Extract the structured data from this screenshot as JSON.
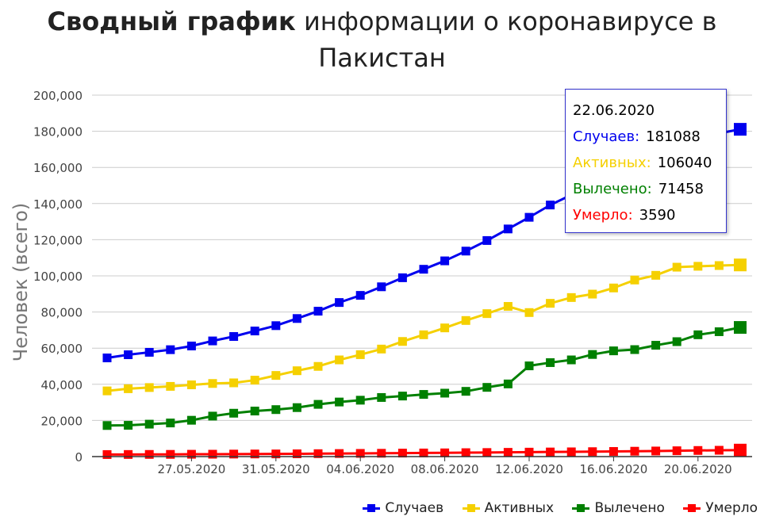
{
  "title": {
    "bold": "Сводный график",
    "rest_line1": " информации о коронавирусе в",
    "line2": "Пакистан"
  },
  "chart_data": {
    "type": "line",
    "title": "Сводный график информации о коронавирусе в Пакистан",
    "xlabel": "",
    "ylabel": "Человек (всего)",
    "ylim": [
      0,
      200000
    ],
    "yticks": [
      0,
      20000,
      40000,
      60000,
      80000,
      100000,
      120000,
      140000,
      160000,
      180000,
      200000
    ],
    "ytick_labels": [
      "0",
      "20,000",
      "40,000",
      "60,000",
      "80,000",
      "100,000",
      "120,000",
      "140,000",
      "160,000",
      "180,000",
      "200,000"
    ],
    "x": [
      "23.05.2020",
      "24.05.2020",
      "25.05.2020",
      "26.05.2020",
      "27.05.2020",
      "28.05.2020",
      "29.05.2020",
      "30.05.2020",
      "31.05.2020",
      "01.06.2020",
      "02.06.2020",
      "03.06.2020",
      "04.06.2020",
      "05.06.2020",
      "06.06.2020",
      "07.06.2020",
      "08.06.2020",
      "09.06.2020",
      "10.06.2020",
      "11.06.2020",
      "12.06.2020",
      "13.06.2020",
      "14.06.2020",
      "15.06.2020",
      "16.06.2020",
      "17.06.2020",
      "18.06.2020",
      "19.06.2020",
      "20.06.2020",
      "21.06.2020",
      "22.06.2020"
    ],
    "xtick_labels": [
      "27.05.2020",
      "31.05.2020",
      "04.06.2020",
      "08.06.2020",
      "12.06.2020",
      "16.06.2020",
      "20.06.2020"
    ],
    "grid": true,
    "legend_position": "bottom-right",
    "series": [
      {
        "name": "Случаев",
        "color": "#0000ee",
        "values": [
          54600,
          56350,
          57700,
          59150,
          61200,
          64000,
          66450,
          69500,
          72450,
          76400,
          80450,
          85250,
          89200,
          93950,
          98950,
          103650,
          108300,
          113700,
          119550,
          125950,
          132400,
          139200,
          144800,
          150000,
          154750,
          160100,
          165050,
          171650,
          176600,
          178900,
          181088
        ]
      },
      {
        "name": "Активных",
        "color": "#f5d000",
        "values": [
          36350,
          37550,
          38200,
          38850,
          39700,
          40450,
          40800,
          42300,
          44900,
          47500,
          49900,
          53500,
          56400,
          59500,
          63700,
          67400,
          71200,
          75300,
          79100,
          83100,
          79700,
          84800,
          88000,
          89900,
          93300,
          97700,
          100300,
          104800,
          105300,
          105700,
          106040
        ]
      },
      {
        "name": "Вылечено",
        "color": "#008000",
        "values": [
          17200,
          17300,
          17950,
          18600,
          20100,
          22400,
          24000,
          25200,
          26000,
          27100,
          28900,
          30200,
          31200,
          32700,
          33500,
          34400,
          35100,
          36100,
          38300,
          40200,
          50200,
          52000,
          53500,
          56500,
          58500,
          59200,
          61600,
          63600,
          67400,
          69100,
          71458
        ]
      },
      {
        "name": "Умерло",
        "color": "#ff0000",
        "values": [
          1130,
          1165,
          1200,
          1225,
          1290,
          1320,
          1395,
          1450,
          1480,
          1540,
          1621,
          1702,
          1770,
          1838,
          1935,
          2002,
          2067,
          2172,
          2255,
          2356,
          2463,
          2551,
          2632,
          2729,
          2839,
          2975,
          3093,
          3229,
          3382,
          3501,
          3590
        ]
      }
    ]
  },
  "tooltip": {
    "date": "22.06.2020",
    "rows": [
      {
        "label": "Случаев:",
        "value": "181088",
        "color": "#0000ee"
      },
      {
        "label": "Активных:",
        "value": "106040",
        "color": "#f5d000"
      },
      {
        "label": "Вылечено:",
        "value": "71458",
        "color": "#008000"
      },
      {
        "label": "Умерло:",
        "value": "3590",
        "color": "#ff0000"
      }
    ]
  }
}
